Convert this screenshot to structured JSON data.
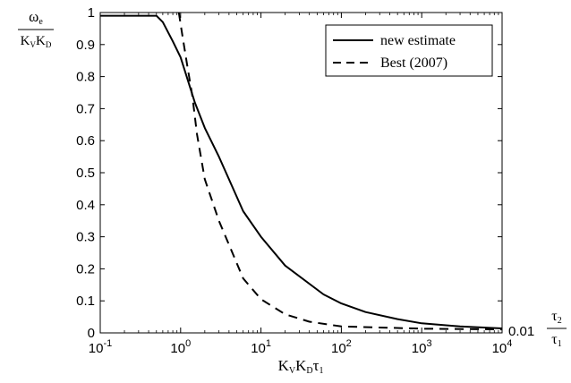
{
  "chart_data": {
    "type": "line",
    "x_scale": "log",
    "xlim": [
      0.1,
      10000
    ],
    "ylim": [
      0,
      1
    ],
    "grid": false,
    "legend_position": "top-right",
    "x_ticks": [
      {
        "base": "10",
        "exp": "-1",
        "value": 0.1
      },
      {
        "base": "10",
        "exp": "0",
        "value": 1
      },
      {
        "base": "10",
        "exp": "1",
        "value": 10
      },
      {
        "base": "10",
        "exp": "2",
        "value": 100
      },
      {
        "base": "10",
        "exp": "3",
        "value": 1000
      },
      {
        "base": "10",
        "exp": "4",
        "value": 10000
      }
    ],
    "y_ticks": [
      "0",
      "0.1",
      "0.2",
      "0.3",
      "0.4",
      "0.5",
      "0.6",
      "0.7",
      "0.8",
      "0.9",
      "1"
    ],
    "ylabel": {
      "num_main": "ω",
      "num_sub": "e",
      "den_a": "K",
      "den_a_sub": "V",
      "den_b": "K",
      "den_b_sub": "D"
    },
    "xlabel": {
      "a": "K",
      "a_sub": "V",
      "b": "K",
      "b_sub": "D",
      "c": "τ",
      "c_sub": "1"
    },
    "right_annotation": {
      "value": "0.01",
      "num": "τ",
      "num_sub": "2",
      "den": "τ",
      "den_sub": "1",
      "y": 0.01
    },
    "series": [
      {
        "name": "new estimate",
        "style": "solid",
        "color": "#000000",
        "x": [
          0.1,
          0.5,
          0.6,
          0.8,
          1,
          1.5,
          2,
          3,
          6,
          10,
          20,
          60,
          100,
          200,
          500,
          1000,
          3000,
          10000
        ],
        "y": [
          0.99,
          0.99,
          0.97,
          0.91,
          0.86,
          0.72,
          0.64,
          0.55,
          0.38,
          0.3,
          0.21,
          0.12,
          0.092,
          0.065,
          0.043,
          0.03,
          0.02,
          0.014
        ]
      },
      {
        "name": "Best (2007)",
        "style": "dashed",
        "color": "#000000",
        "x": [
          0.95,
          1.05,
          1.2,
          1.4,
          1.6,
          2,
          3,
          6,
          10,
          20,
          40,
          100,
          1000,
          10000
        ],
        "y": [
          1.0,
          0.93,
          0.84,
          0.74,
          0.62,
          0.48,
          0.35,
          0.17,
          0.105,
          0.058,
          0.035,
          0.02,
          0.013,
          0.011
        ]
      }
    ]
  }
}
